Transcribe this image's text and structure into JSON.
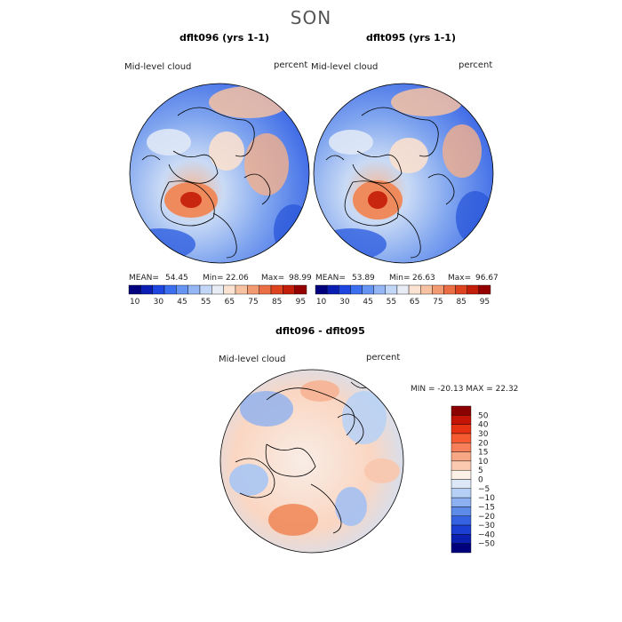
{
  "season": "SON",
  "panels": [
    {
      "title": "dflt096 (yrs 1-1)",
      "variable": "Mid-level cloud",
      "units": "percent",
      "mean_label": "MEAN=",
      "mean": "54.45",
      "min_label": "Min=",
      "min": "22.06",
      "max_label": "Max=",
      "max": "98.99"
    },
    {
      "title": "dflt095 (yrs 1-1)",
      "variable": "Mid-level cloud",
      "units": "percent",
      "mean_label": "MEAN=",
      "mean": "53.89",
      "min_label": "Min=",
      "min": "26.63",
      "max_label": "Max=",
      "max": "96.67"
    }
  ],
  "abs_colorbar": {
    "colors": [
      "#00007f",
      "#0a1eb3",
      "#1f45e0",
      "#3c6ef0",
      "#6694f2",
      "#94b6f5",
      "#c2d6f7",
      "#e8ecf5",
      "#fbe3d3",
      "#f7c2a1",
      "#f29b72",
      "#ec6e44",
      "#de4320",
      "#c21e0a",
      "#940000"
    ],
    "labels": [
      "10",
      "30",
      "45",
      "55",
      "65",
      "75",
      "85",
      "95"
    ]
  },
  "diff_panel": {
    "title": "dflt096 - dflt095",
    "variable": "Mid-level cloud",
    "units": "percent",
    "minmax_text": "MIN = -20.13 MAX =  22.32"
  },
  "diff_colorbar": {
    "colors": [
      "#8b0000",
      "#c41405",
      "#e63213",
      "#f55a30",
      "#f7805a",
      "#f8a785",
      "#fac9b0",
      "#fdf0e6",
      "#dce8f8",
      "#b5cff5",
      "#8cb0f0",
      "#5e8ae8",
      "#3562e0",
      "#1a3fd2",
      "#0b20b0",
      "#00007f"
    ],
    "labels": [
      "50",
      "40",
      "30",
      "20",
      "15",
      "10",
      "5",
      "0",
      "−5",
      "−10",
      "−15",
      "−20",
      "−30",
      "−40",
      "−50"
    ]
  },
  "chart_data": [
    {
      "type": "heatmap",
      "projection": "north-polar-stereographic",
      "title": "dflt096 (yrs 1-1)",
      "field": "Mid-level cloud",
      "units": "percent",
      "mean": 54.45,
      "min": 22.06,
      "max": 98.99,
      "levels": [
        10,
        30,
        45,
        55,
        65,
        75,
        85,
        95
      ]
    },
    {
      "type": "heatmap",
      "projection": "north-polar-stereographic",
      "title": "dflt095 (yrs 1-1)",
      "field": "Mid-level cloud",
      "units": "percent",
      "mean": 53.89,
      "min": 26.63,
      "max": 96.67,
      "levels": [
        10,
        30,
        45,
        55,
        65,
        75,
        85,
        95
      ]
    },
    {
      "type": "heatmap",
      "projection": "north-polar-stereographic",
      "title": "dflt096 - dflt095",
      "field": "Mid-level cloud",
      "units": "percent",
      "min": -20.13,
      "max": 22.32,
      "levels": [
        -50,
        -40,
        -30,
        -20,
        -15,
        -10,
        -5,
        0,
        5,
        10,
        15,
        20,
        30,
        40,
        50
      ]
    }
  ]
}
